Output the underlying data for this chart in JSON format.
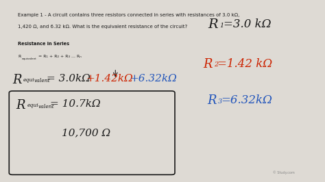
{
  "bg_color": "#dedad4",
  "black": "#1a1a1a",
  "red": "#cc2200",
  "blue": "#2255bb",
  "gray": "#aaaaaa",
  "watermark": "© Study.com",
  "example_line1": "Example 1 - A circuit contains three resistors connected in series with resistances of 3.0 kΩ,",
  "example_line2": "1,420 Ω, and 6.32 kΩ. What is the equivalent resistance of the circuit?",
  "section_label": "Resistance in Series",
  "formula_label": "R",
  "formula_sub": "equivalent",
  "formula_rest": " = R₁ + R₂ + R₃ ... Rₙ",
  "figw": 4.74,
  "figh": 2.66,
  "dpi": 100
}
